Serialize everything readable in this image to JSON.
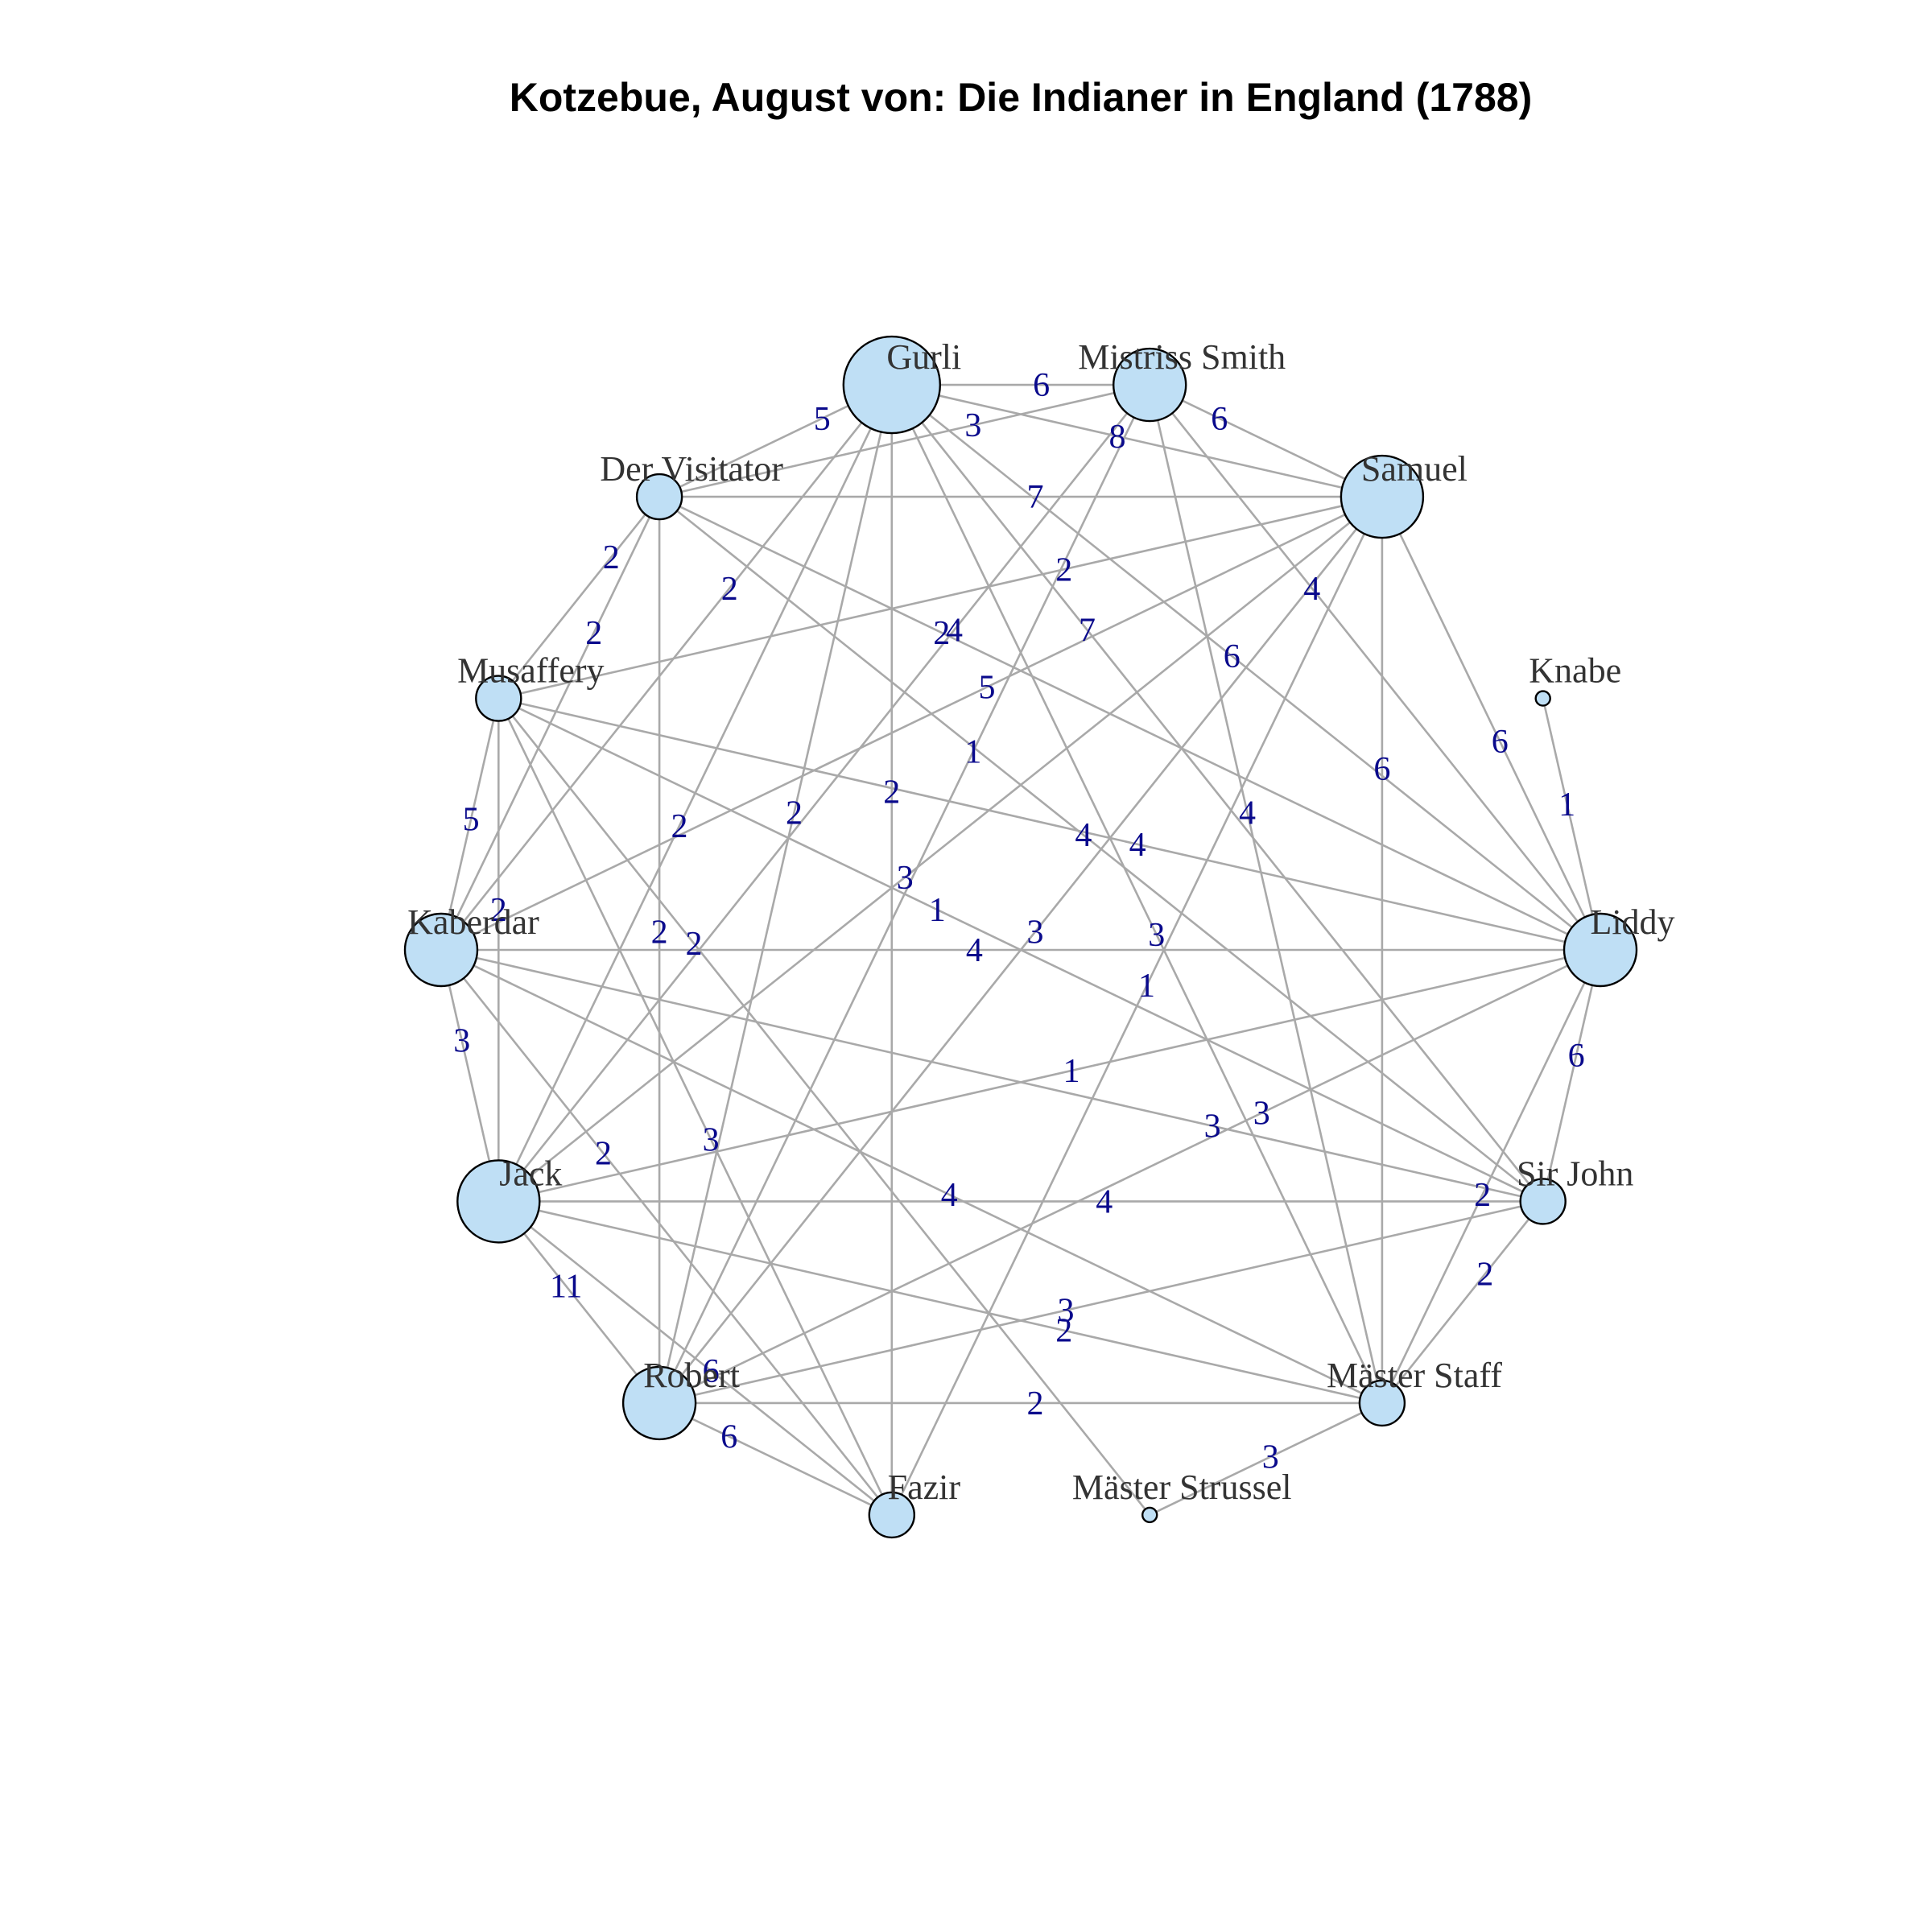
{
  "title": "Kotzebue, August von: Die Indianer in England (1788)",
  "colors": {
    "node_fill": "#bfdff5",
    "node_stroke": "#000000",
    "edge": "#a9a9a9",
    "edge_label": "#0a0a8c",
    "node_label": "#333333"
  },
  "nodes": [
    {
      "id": "mistriss_smith",
      "label": "Mistriss Smith",
      "size": 3
    },
    {
      "id": "samuel",
      "label": "Samuel",
      "size": 4
    },
    {
      "id": "knabe",
      "label": "Knabe",
      "size": 1
    },
    {
      "id": "liddy",
      "label": "Liddy",
      "size": 3
    },
    {
      "id": "sir_john",
      "label": "Sir John",
      "size": 2
    },
    {
      "id": "maester_staff",
      "label": "Mäster Staff",
      "size": 2
    },
    {
      "id": "maester_strussel",
      "label": "Mäster Strussel",
      "size": 1
    },
    {
      "id": "fazir",
      "label": "Fazir",
      "size": 2
    },
    {
      "id": "robert",
      "label": "Robert",
      "size": 3
    },
    {
      "id": "jack",
      "label": "Jack",
      "size": 4
    },
    {
      "id": "kaberdar",
      "label": "Kaberdar",
      "size": 3
    },
    {
      "id": "musaffery",
      "label": "Musaffery",
      "size": 2
    },
    {
      "id": "der_visitator",
      "label": "Der Visitator",
      "size": 2
    },
    {
      "id": "gurli",
      "label": "Gurli",
      "size": 5
    }
  ],
  "edges": [
    {
      "source": "mistriss_smith",
      "target": "samuel",
      "weight": "6"
    },
    {
      "source": "mistriss_smith",
      "target": "gurli",
      "weight": "6"
    },
    {
      "source": "samuel",
      "target": "gurli",
      "weight": "8"
    },
    {
      "source": "mistriss_smith",
      "target": "der_visitator",
      "weight": "3"
    },
    {
      "source": "samuel",
      "target": "der_visitator",
      "weight": "7"
    },
    {
      "source": "gurli",
      "target": "der_visitator",
      "weight": "5"
    },
    {
      "source": "knabe",
      "target": "liddy",
      "weight": "1"
    },
    {
      "source": "samuel",
      "target": "liddy",
      "weight": "6"
    },
    {
      "source": "mistriss_smith",
      "target": "liddy",
      "weight": "4"
    },
    {
      "source": "gurli",
      "target": "liddy",
      "weight": "6"
    },
    {
      "source": "der_visitator",
      "target": "liddy",
      "weight": "2"
    },
    {
      "source": "liddy",
      "target": "sir_john",
      "weight": "6"
    },
    {
      "source": "liddy",
      "target": "maester_staff",
      "weight": "2"
    },
    {
      "source": "sir_john",
      "target": "maester_staff",
      "weight": "2"
    },
    {
      "source": "maester_staff",
      "target": "maester_strussel",
      "weight": "3"
    },
    {
      "source": "robert",
      "target": "fazir",
      "weight": "6"
    },
    {
      "source": "jack",
      "target": "robert",
      "weight": "11"
    },
    {
      "source": "jack",
      "target": "fazir",
      "weight": "6"
    },
    {
      "source": "kaberdar",
      "target": "jack",
      "weight": "3"
    },
    {
      "source": "musaffery",
      "target": "kaberdar",
      "weight": "5"
    },
    {
      "source": "der_visitator",
      "target": "musaffery",
      "weight": "2"
    },
    {
      "source": "musaffery",
      "target": "sir_john",
      "weight": "1"
    },
    {
      "source": "kaberdar",
      "target": "maester_staff",
      "weight": "4"
    },
    {
      "source": "mistriss_smith",
      "target": "robert",
      "weight": "1"
    },
    {
      "source": "samuel",
      "target": "fazir",
      "weight": "1"
    },
    {
      "source": "samuel",
      "target": "maester_staff",
      "weight": "6"
    },
    {
      "source": "mistriss_smith",
      "target": "maester_staff",
      "weight": "4"
    },
    {
      "source": "gurli",
      "target": "maester_staff",
      "weight": "3"
    },
    {
      "source": "gurli",
      "target": "fazir",
      "weight": "2"
    },
    {
      "source": "der_visitator",
      "target": "sir_john",
      "weight": "4"
    },
    {
      "source": "mistriss_smith",
      "target": "jack",
      "weight": "4"
    },
    {
      "source": "samuel",
      "target": "kaberdar",
      "weight": "5"
    },
    {
      "source": "samuel",
      "target": "jack",
      "weight": "3"
    },
    {
      "source": "samuel",
      "target": "musaffery",
      "weight": "2"
    },
    {
      "source": "samuel",
      "target": "robert",
      "weight": "3"
    },
    {
      "source": "gurli",
      "target": "sir_john",
      "weight": "7"
    },
    {
      "source": "gurli",
      "target": "robert",
      "weight": "2"
    },
    {
      "source": "gurli",
      "target": "jack",
      "weight": "2"
    },
    {
      "source": "gurli",
      "target": "kaberdar",
      "weight": "2"
    },
    {
      "source": "der_visitator",
      "target": "robert",
      "weight": "2"
    },
    {
      "source": "der_visitator",
      "target": "kaberdar",
      "weight": "2"
    },
    {
      "source": "liddy",
      "target": "musaffery",
      "weight": "4"
    },
    {
      "source": "liddy",
      "target": "kaberdar",
      "weight": "4"
    },
    {
      "source": "liddy",
      "target": "robert",
      "weight": "3"
    },
    {
      "source": "liddy",
      "target": "jack",
      "weight": "1"
    },
    {
      "source": "sir_john",
      "target": "kaberdar",
      "weight": "3"
    },
    {
      "source": "sir_john",
      "target": "jack",
      "weight": "4"
    },
    {
      "source": "sir_john",
      "target": "robert",
      "weight": "3"
    },
    {
      "source": "maester_staff",
      "target": "jack",
      "weight": "2"
    },
    {
      "source": "maester_staff",
      "target": "robert",
      "weight": "2"
    },
    {
      "source": "musaffery",
      "target": "maester_strussel",
      "weight": "2"
    },
    {
      "source": "musaffery",
      "target": "jack",
      "weight": "2"
    },
    {
      "source": "musaffery",
      "target": "fazir",
      "weight": "3"
    },
    {
      "source": "kaberdar",
      "target": "fazir",
      "weight": "2"
    }
  ]
}
